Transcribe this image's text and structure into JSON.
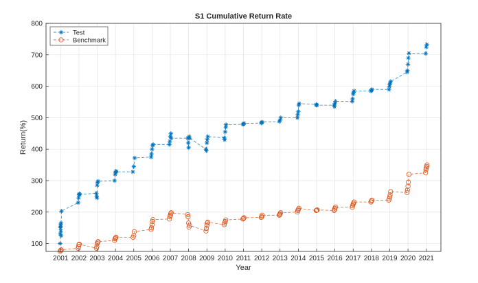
{
  "chart_data": {
    "type": "line",
    "title": "S1 Cumulative Return Rate",
    "xlabel": "Year",
    "ylabel": "Return(%)",
    "xlim": [
      2000.2,
      2021.8
    ],
    "ylim": [
      75,
      800
    ],
    "xticks": [
      2001,
      2002,
      2003,
      2004,
      2005,
      2006,
      2007,
      2008,
      2009,
      2010,
      2011,
      2012,
      2013,
      2014,
      2015,
      2016,
      2017,
      2018,
      2019,
      2020,
      2021
    ],
    "yticks": [
      100,
      200,
      300,
      400,
      500,
      600,
      700,
      800
    ],
    "grid": true,
    "legend_position": "top-left",
    "series": [
      {
        "name": "Test",
        "color": "#0072BD",
        "marker": "asterisk",
        "line_style": "dashed",
        "x": [
          2000.97,
          2000.98,
          2000.99,
          2001.0,
          2001.0,
          2001.01,
          2001.02,
          2001.03,
          2001.04,
          2001.96,
          2001.98,
          2002.0,
          2002.02,
          2002.05,
          2002.95,
          2002.97,
          2002.99,
          2003.0,
          2003.02,
          2003.05,
          2003.95,
          2003.98,
          2004.0,
          2004.02,
          2004.05,
          2004.95,
          2005.0,
          2005.05,
          2005.95,
          2005.97,
          2006.0,
          2006.03,
          2006.06,
          2006.95,
          2006.97,
          2007.0,
          2007.03,
          2007.05,
          2007.95,
          2007.98,
          2008.0,
          2008.03,
          2008.05,
          2008.95,
          2008.97,
          2009.0,
          2009.02,
          2009.05,
          2009.95,
          2009.97,
          2010.0,
          2010.03,
          2010.05,
          2010.97,
          2011.0,
          2011.03,
          2011.97,
          2012.0,
          2012.03,
          2012.96,
          2013.0,
          2013.04,
          2013.95,
          2013.97,
          2014.0,
          2014.02,
          2014.05,
          2014.98,
          2015.0,
          2015.02,
          2015.96,
          2015.98,
          2016.0,
          2016.03,
          2016.95,
          2016.97,
          2017.0,
          2017.02,
          2017.05,
          2017.97,
          2018.0,
          2018.03,
          2018.96,
          2018.98,
          2019.0,
          2019.02,
          2019.05,
          2019.95,
          2019.97,
          2020.0,
          2020.02,
          2020.05,
          2020.97,
          2021.0,
          2021.03
        ],
        "y": [
          100,
          130,
          150,
          160,
          155,
          140,
          165,
          125,
          203,
          230,
          245,
          255,
          258,
          256,
          260,
          250,
          245,
          285,
          295,
          298,
          300,
          320,
          325,
          330,
          328,
          328,
          345,
          372,
          375,
          385,
          400,
          412,
          415,
          415,
          425,
          440,
          450,
          435,
          435,
          420,
          405,
          440,
          435,
          400,
          395,
          420,
          430,
          440,
          436,
          430,
          455,
          470,
          478,
          479,
          480,
          482,
          483,
          485,
          486,
          488,
          492,
          500,
          500,
          510,
          520,
          540,
          545,
          542,
          540,
          540,
          540,
          535,
          545,
          552,
          552,
          560,
          575,
          580,
          585,
          585,
          587,
          590,
          590,
          600,
          605,
          610,
          615,
          645,
          650,
          670,
          690,
          705,
          704,
          725,
          733
        ]
      },
      {
        "name": "Benchmark",
        "color": "#D95319",
        "marker": "circle",
        "line_style": "dashed",
        "x": [
          2000.97,
          2001.0,
          2001.03,
          2001.96,
          2001.98,
          2002.0,
          2002.02,
          2002.96,
          2002.98,
          2003.0,
          2003.03,
          2003.05,
          2003.95,
          2003.98,
          2004.0,
          2004.03,
          2004.96,
          2005.0,
          2005.03,
          2005.95,
          2005.97,
          2006.0,
          2006.02,
          2006.05,
          2006.95,
          2006.97,
          2007.0,
          2007.02,
          2007.05,
          2007.95,
          2007.97,
          2008.0,
          2008.02,
          2008.05,
          2008.95,
          2008.97,
          2009.0,
          2009.02,
          2009.05,
          2009.95,
          2009.97,
          2010.0,
          2010.03,
          2010.97,
          2011.0,
          2011.03,
          2011.97,
          2012.0,
          2012.02,
          2012.96,
          2012.98,
          2013.0,
          2013.03,
          2013.95,
          2013.97,
          2014.0,
          2014.03,
          2014.98,
          2015.0,
          2015.03,
          2015.96,
          2015.98,
          2016.0,
          2016.03,
          2016.95,
          2016.97,
          2017.0,
          2017.02,
          2017.05,
          2017.97,
          2018.0,
          2018.03,
          2018.95,
          2018.97,
          2019.0,
          2019.02,
          2019.05,
          2019.95,
          2019.97,
          2020.0,
          2020.02,
          2020.05,
          2020.96,
          2020.98,
          2021.0,
          2021.02,
          2021.04
        ],
        "y": [
          75,
          78,
          80,
          85,
          90,
          96,
          98,
          85,
          90,
          100,
          104,
          106,
          110,
          115,
          118,
          120,
          120,
          125,
          138,
          145,
          150,
          160,
          170,
          176,
          178,
          185,
          190,
          195,
          198,
          192,
          185,
          165,
          152,
          158,
          140,
          148,
          158,
          165,
          168,
          160,
          165,
          170,
          175,
          178,
          180,
          182,
          183,
          185,
          190,
          190,
          192,
          195,
          198,
          200,
          205,
          208,
          212,
          205,
          206,
          207,
          205,
          208,
          212,
          216,
          215,
          220,
          225,
          228,
          232,
          232,
          235,
          238,
          238,
          242,
          248,
          255,
          265,
          262,
          270,
          282,
          295,
          320,
          325,
          335,
          340,
          345,
          350
        ]
      }
    ]
  }
}
